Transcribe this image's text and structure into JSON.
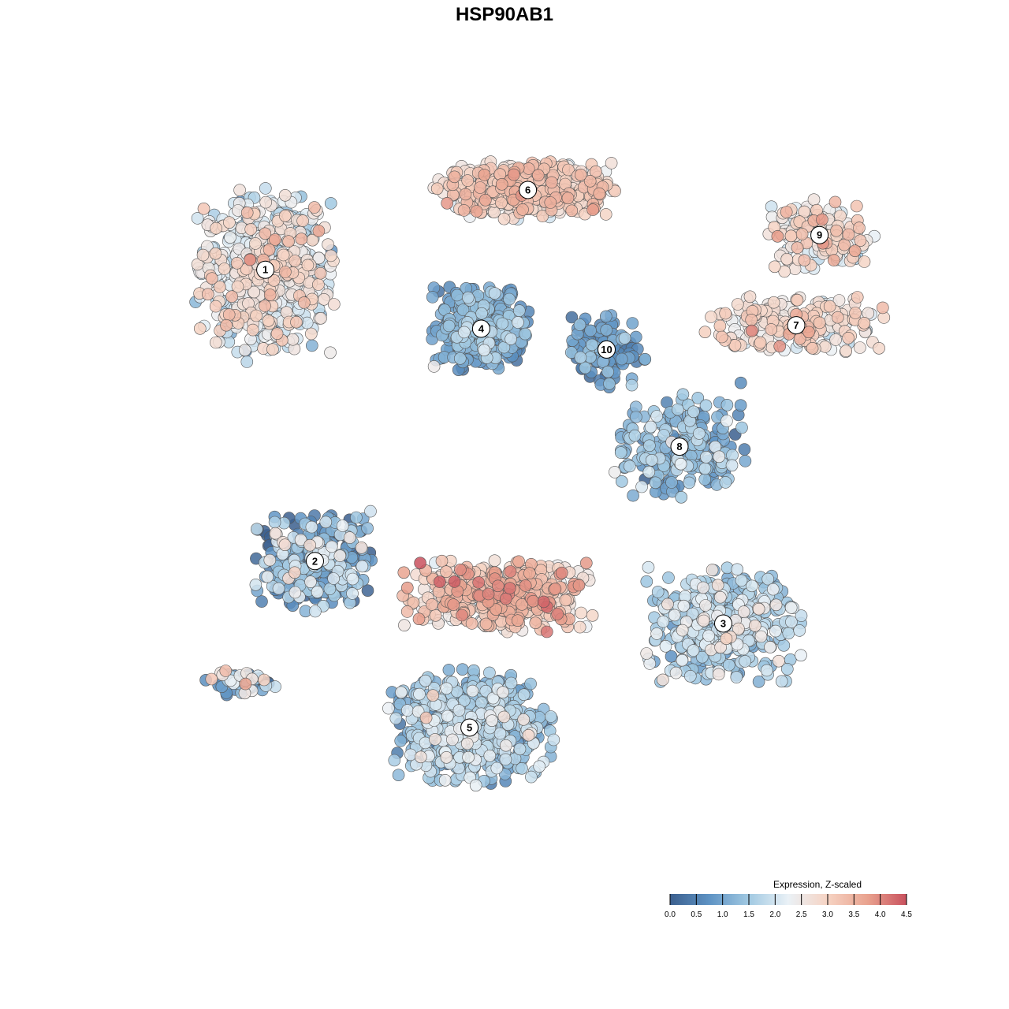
{
  "chart_data": {
    "type": "scatter",
    "title": "HSP90AB1",
    "legend": {
      "title": "Expression, Z-scaled",
      "position": "bottom-right",
      "range": [
        0,
        4.5
      ],
      "ticks": [
        "0.0",
        "0.5",
        "1.0",
        "1.5",
        "2.0",
        "2.5",
        "3.0",
        "3.5",
        "4.0",
        "4.5"
      ],
      "palette": [
        "#3b5f8e",
        "#5e93c4",
        "#a1c9e2",
        "#eaf1f6",
        "#f6d3c3",
        "#e9a38f",
        "#c9515e"
      ]
    },
    "point_style": {
      "stroke": "#555555",
      "opacity": 0.85
    },
    "clusters": [
      {
        "label": "1",
        "x": -0.82,
        "y": 0.62,
        "spread": [
          0.2,
          0.2
        ],
        "n": 650,
        "mean": 2.2,
        "sd": 0.55
      },
      {
        "label": "6",
        "x": 0.08,
        "y": 0.85,
        "spread": [
          0.26,
          0.07
        ],
        "n": 520,
        "mean": 2.8,
        "sd": 0.4
      },
      {
        "label": "4",
        "x": -0.08,
        "y": 0.45,
        "spread": [
          0.14,
          0.1
        ],
        "n": 380,
        "mean": 1.0,
        "sd": 0.4
      },
      {
        "label": "10",
        "x": 0.35,
        "y": 0.39,
        "spread": [
          0.11,
          0.09
        ],
        "n": 120,
        "mean": 0.8,
        "sd": 0.4
      },
      {
        "label": "9",
        "x": 1.08,
        "y": 0.72,
        "spread": [
          0.16,
          0.09
        ],
        "n": 150,
        "mean": 2.6,
        "sd": 0.5
      },
      {
        "label": "7",
        "x": 1.0,
        "y": 0.46,
        "spread": [
          0.27,
          0.07
        ],
        "n": 230,
        "mean": 2.7,
        "sd": 0.4
      },
      {
        "label": "8",
        "x": 0.6,
        "y": 0.11,
        "spread": [
          0.2,
          0.13
        ],
        "n": 250,
        "mean": 1.1,
        "sd": 0.5
      },
      {
        "label": "2",
        "x": -0.65,
        "y": -0.22,
        "spread": [
          0.17,
          0.12
        ],
        "n": 320,
        "mean": 1.0,
        "sd": 0.8
      },
      {
        "label": "3",
        "x": 0.75,
        "y": -0.4,
        "spread": [
          0.23,
          0.14
        ],
        "n": 420,
        "mean": 1.6,
        "sd": 0.5
      },
      {
        "label": "5",
        "x": -0.12,
        "y": -0.7,
        "spread": [
          0.24,
          0.14
        ],
        "n": 560,
        "mean": 1.4,
        "sd": 0.5
      },
      {
        "label": "",
        "x": -0.02,
        "y": -0.32,
        "spread": [
          0.28,
          0.09
        ],
        "n": 480,
        "mean": 3.0,
        "sd": 0.5
      },
      {
        "label": "",
        "x": -0.9,
        "y": -0.57,
        "spread": [
          0.11,
          0.03
        ],
        "n": 50,
        "mean": 1.4,
        "sd": 0.9
      }
    ]
  }
}
